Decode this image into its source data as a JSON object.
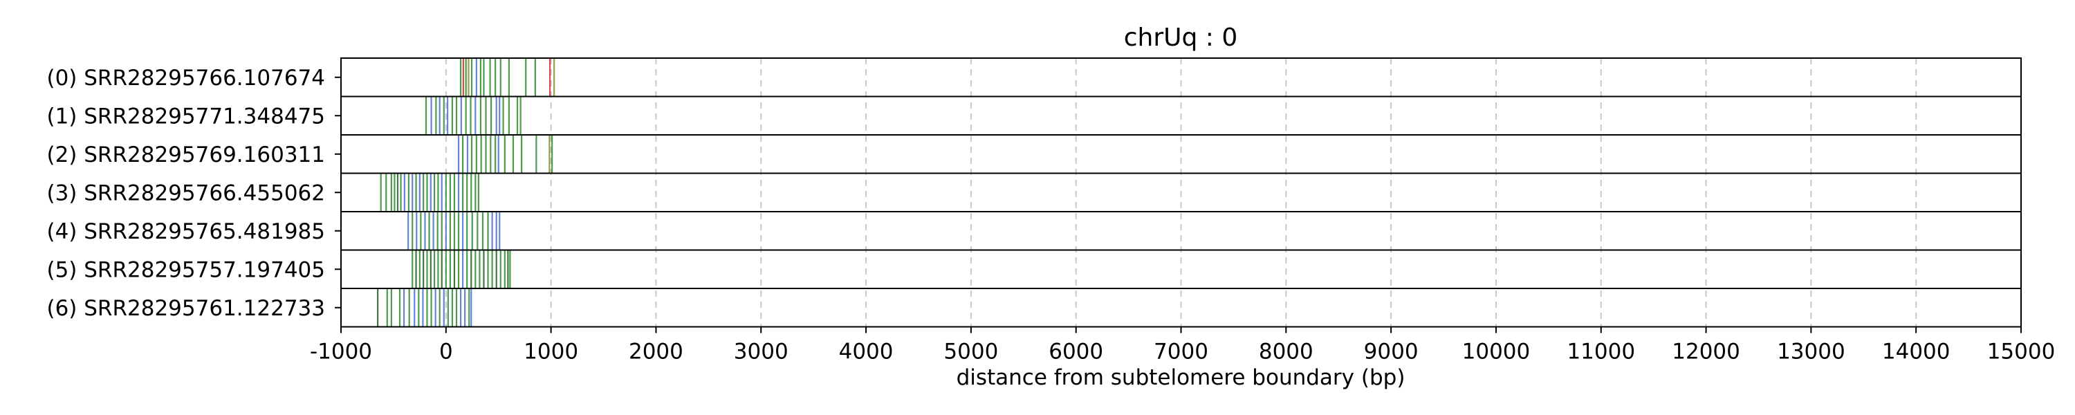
{
  "chart_data": {
    "type": "strip",
    "title": "chrUq : 0",
    "xlabel": "distance from subtelomere boundary (bp)",
    "ylabel": "",
    "xlim": [
      -1000,
      15000
    ],
    "x_ticks": [
      -1000,
      0,
      1000,
      2000,
      3000,
      4000,
      5000,
      6000,
      7000,
      8000,
      9000,
      10000,
      11000,
      12000,
      13000,
      14000,
      15000
    ],
    "x_tick_labels": [
      "-1000",
      "0",
      "1000",
      "2000",
      "3000",
      "4000",
      "5000",
      "6000",
      "7000",
      "8000",
      "9000",
      "10000",
      "11000",
      "12000",
      "13000",
      "14000",
      "15000"
    ],
    "grid": "x dashed",
    "tracks": [
      {
        "label": "(0) SRR28295766.107674",
        "marks": [
          [
            140,
            "#2e8b2e"
          ],
          [
            165,
            "#d62728"
          ],
          [
            190,
            "#2e8b2e"
          ],
          [
            215,
            "#8c8c2e"
          ],
          [
            245,
            "#2e8b2e"
          ],
          [
            290,
            "#4a6fd0"
          ],
          [
            330,
            "#2e8b2e"
          ],
          [
            360,
            "#2e8b2e"
          ],
          [
            420,
            "#2e8b2e"
          ],
          [
            470,
            "#2e8b2e"
          ],
          [
            520,
            "#2e8b2e"
          ],
          [
            600,
            "#2e8b2e"
          ],
          [
            760,
            "#2e8b2e"
          ],
          [
            850,
            "#2e8b2e"
          ],
          [
            990,
            "#d62728"
          ],
          [
            1030,
            "#8c8c2e"
          ]
        ]
      },
      {
        "label": "(1) SRR28295771.348475",
        "marks": [
          [
            -190,
            "#2e8b2e"
          ],
          [
            -140,
            "#4a6fd0"
          ],
          [
            -95,
            "#2e8b2e"
          ],
          [
            -60,
            "#4a6fd0"
          ],
          [
            -20,
            "#2e8b2e"
          ],
          [
            15,
            "#4a6fd0"
          ],
          [
            60,
            "#2e8b2e"
          ],
          [
            100,
            "#2e8b2e"
          ],
          [
            145,
            "#4a6fd0"
          ],
          [
            190,
            "#2e8b2e"
          ],
          [
            235,
            "#2e8b2e"
          ],
          [
            280,
            "#4a6fd0"
          ],
          [
            330,
            "#2e8b2e"
          ],
          [
            380,
            "#2e8b2e"
          ],
          [
            430,
            "#2e8b2e"
          ],
          [
            480,
            "#4a6fd0"
          ],
          [
            510,
            "#4a6fd0"
          ],
          [
            545,
            "#2e8b2e"
          ],
          [
            600,
            "#2e8b2e"
          ],
          [
            680,
            "#2e8b2e"
          ],
          [
            710,
            "#2e8b2e"
          ]
        ]
      },
      {
        "label": "(2) SRR28295769.160311",
        "marks": [
          [
            120,
            "#4a6fd0"
          ],
          [
            160,
            "#2e8b2e"
          ],
          [
            205,
            "#4a6fd0"
          ],
          [
            245,
            "#2e8b2e"
          ],
          [
            290,
            "#2e8b2e"
          ],
          [
            335,
            "#2e8b2e"
          ],
          [
            380,
            "#2e8b2e"
          ],
          [
            425,
            "#2e8b2e"
          ],
          [
            470,
            "#2e8b2e"
          ],
          [
            500,
            "#4a6fd0"
          ],
          [
            560,
            "#2e8b2e"
          ],
          [
            640,
            "#2e8b2e"
          ],
          [
            720,
            "#2e8b2e"
          ],
          [
            860,
            "#2e8b2e"
          ],
          [
            985,
            "#8c8c2e"
          ],
          [
            1010,
            "#2e8b2e"
          ]
        ]
      },
      {
        "label": "(3) SRR28295766.455062",
        "marks": [
          [
            -620,
            "#2e8b2e"
          ],
          [
            -570,
            "#2e8b2e"
          ],
          [
            -520,
            "#2e8b2e"
          ],
          [
            -490,
            "#2e8b2e"
          ],
          [
            -460,
            "#1f5f1f"
          ],
          [
            -430,
            "#2e8b2e"
          ],
          [
            -395,
            "#4a6fd0"
          ],
          [
            -355,
            "#2e8b2e"
          ],
          [
            -320,
            "#4a6fd0"
          ],
          [
            -285,
            "#2e8b2e"
          ],
          [
            -250,
            "#4a6fd0"
          ],
          [
            -215,
            "#2e8b2e"
          ],
          [
            -180,
            "#2e8b2e"
          ],
          [
            -145,
            "#4a6fd0"
          ],
          [
            -110,
            "#2e8b2e"
          ],
          [
            -75,
            "#2e8b2e"
          ],
          [
            -40,
            "#4a6fd0"
          ],
          [
            0,
            "#2e8b2e"
          ],
          [
            40,
            "#2e8b2e"
          ],
          [
            80,
            "#2e8b2e"
          ],
          [
            120,
            "#4a6fd0"
          ],
          [
            160,
            "#2e8b2e"
          ],
          [
            200,
            "#2e8b2e"
          ],
          [
            240,
            "#2e8b2e"
          ],
          [
            280,
            "#2e8b2e"
          ],
          [
            310,
            "#2e8b2e"
          ]
        ]
      },
      {
        "label": "(4) SRR28295765.481985",
        "marks": [
          [
            -360,
            "#4a6fd0"
          ],
          [
            -320,
            "#2e8b2e"
          ],
          [
            -280,
            "#4a6fd0"
          ],
          [
            -240,
            "#2e8b2e"
          ],
          [
            -200,
            "#4a6fd0"
          ],
          [
            -160,
            "#2e8b2e"
          ],
          [
            -120,
            "#4a6fd0"
          ],
          [
            -80,
            "#2e8b2e"
          ],
          [
            -40,
            "#2e8b2e"
          ],
          [
            0,
            "#4a6fd0"
          ],
          [
            40,
            "#2e8b2e"
          ],
          [
            80,
            "#2e8b2e"
          ],
          [
            120,
            "#2e8b2e"
          ],
          [
            160,
            "#4a6fd0"
          ],
          [
            200,
            "#2e8b2e"
          ],
          [
            250,
            "#2e8b2e"
          ],
          [
            300,
            "#2e8b2e"
          ],
          [
            350,
            "#2e8b2e"
          ],
          [
            400,
            "#2e8b2e"
          ],
          [
            440,
            "#4a6fd0"
          ],
          [
            480,
            "#4a6fd0"
          ],
          [
            510,
            "#4a6fd0"
          ]
        ]
      },
      {
        "label": "(5) SRR28295757.197405",
        "marks": [
          [
            -320,
            "#2e8b2e"
          ],
          [
            -285,
            "#1f5f1f"
          ],
          [
            -250,
            "#2e8b2e"
          ],
          [
            -215,
            "#1f5f1f"
          ],
          [
            -180,
            "#2e8b2e"
          ],
          [
            -145,
            "#1f5f1f"
          ],
          [
            -110,
            "#2e8b2e"
          ],
          [
            -75,
            "#2e8b2e"
          ],
          [
            -40,
            "#1f5f1f"
          ],
          [
            0,
            "#2e8b2e"
          ],
          [
            40,
            "#2e8b2e"
          ],
          [
            80,
            "#1f5f1f"
          ],
          [
            120,
            "#2e8b2e"
          ],
          [
            160,
            "#4a6fd0"
          ],
          [
            200,
            "#2e8b2e"
          ],
          [
            240,
            "#1f5f1f"
          ],
          [
            280,
            "#2e8b2e"
          ],
          [
            320,
            "#2e8b2e"
          ],
          [
            360,
            "#1f5f1f"
          ],
          [
            400,
            "#2e8b2e"
          ],
          [
            440,
            "#2e8b2e"
          ],
          [
            480,
            "#1f5f1f"
          ],
          [
            520,
            "#2e8b2e"
          ],
          [
            560,
            "#2e8b2e"
          ],
          [
            590,
            "#1f5f1f"
          ],
          [
            610,
            "#2e8b2e"
          ]
        ]
      },
      {
        "label": "(6) SRR28295761.122733",
        "marks": [
          [
            -650,
            "#1f5f1f"
          ],
          [
            -560,
            "#2e8b2e"
          ],
          [
            -520,
            "#2e8b2e"
          ],
          [
            -440,
            "#2e8b2e"
          ],
          [
            -400,
            "#4a6fd0"
          ],
          [
            -350,
            "#2e8b2e"
          ],
          [
            -300,
            "#4a6fd0"
          ],
          [
            -260,
            "#2e8b2e"
          ],
          [
            -220,
            "#4a6fd0"
          ],
          [
            -180,
            "#2e8b2e"
          ],
          [
            -140,
            "#2e8b2e"
          ],
          [
            -100,
            "#4a6fd0"
          ],
          [
            -60,
            "#2e8b2e"
          ],
          [
            -20,
            "#4a6fd0"
          ],
          [
            20,
            "#2e8b2e"
          ],
          [
            60,
            "#2e8b2e"
          ],
          [
            100,
            "#2e8b2e"
          ],
          [
            140,
            "#4a6fd0"
          ],
          [
            180,
            "#4a6fd0"
          ],
          [
            220,
            "#2e8b2e"
          ],
          [
            240,
            "#4a6fd0"
          ]
        ]
      }
    ]
  }
}
